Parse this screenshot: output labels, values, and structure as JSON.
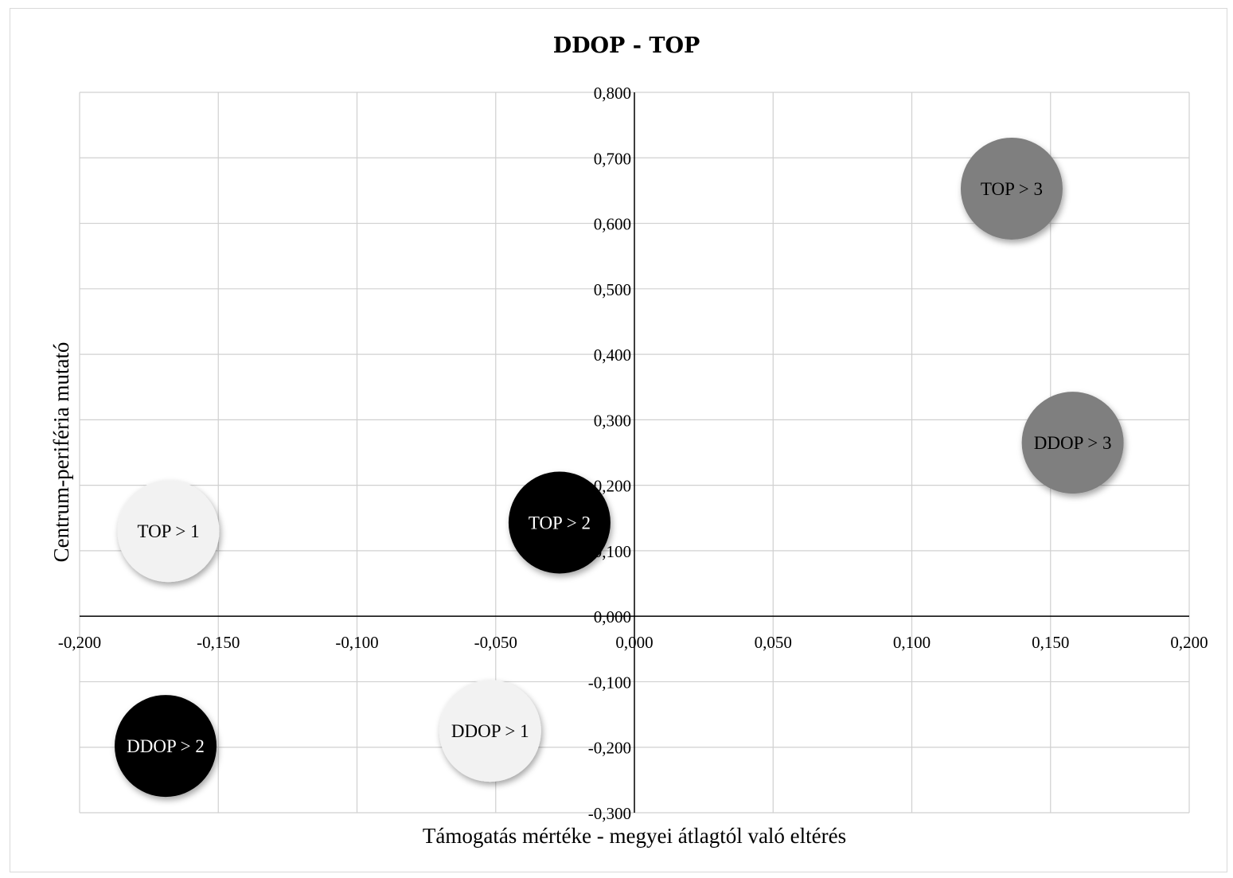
{
  "chart_data": {
    "type": "bubble",
    "title": "DDOP - TOP",
    "xlabel": "Támogatás mértéke - megyei átlagtól való eltérés",
    "ylabel": "Centrum-periféria mutató",
    "xlim": [
      -0.2,
      0.2
    ],
    "ylim": [
      -0.3,
      0.8
    ],
    "x_ticks": [
      -0.2,
      -0.15,
      -0.1,
      -0.05,
      0.0,
      0.05,
      0.1,
      0.15,
      0.2
    ],
    "x_tick_labels": [
      "-0,200",
      "-0,150",
      "-0,100",
      "-0,050",
      "0,000",
      "0,050",
      "0,100",
      "0,150",
      "0,200"
    ],
    "y_ticks": [
      -0.3,
      -0.2,
      -0.1,
      0.0,
      0.1,
      0.2,
      0.3,
      0.4,
      0.5,
      0.6,
      0.7,
      0.8
    ],
    "y_tick_labels": [
      "-0,300",
      "-0,200",
      "-0,100",
      "0,000",
      "0,100",
      "0,200",
      "0,300",
      "0,400",
      "0,500",
      "0,600",
      "0,700",
      "0,800"
    ],
    "grid": true,
    "points": [
      {
        "label": "TOP > 1",
        "x": -0.168,
        "y": 0.13,
        "color": "#f2f2f2",
        "text_color": "#000000"
      },
      {
        "label": "TOP > 2",
        "x": -0.027,
        "y": 0.143,
        "color": "#000000",
        "text_color": "#ffffff"
      },
      {
        "label": "TOP > 3",
        "x": 0.136,
        "y": 0.653,
        "color": "#7f7f7f",
        "text_color": "#000000"
      },
      {
        "label": "DDOP > 1",
        "x": -0.052,
        "y": -0.175,
        "color": "#f2f2f2",
        "text_color": "#000000"
      },
      {
        "label": "DDOP > 2",
        "x": -0.169,
        "y": -0.198,
        "color": "#000000",
        "text_color": "#ffffff"
      },
      {
        "label": "DDOP > 3",
        "x": 0.158,
        "y": 0.265,
        "color": "#7f7f7f",
        "text_color": "#000000"
      }
    ]
  }
}
